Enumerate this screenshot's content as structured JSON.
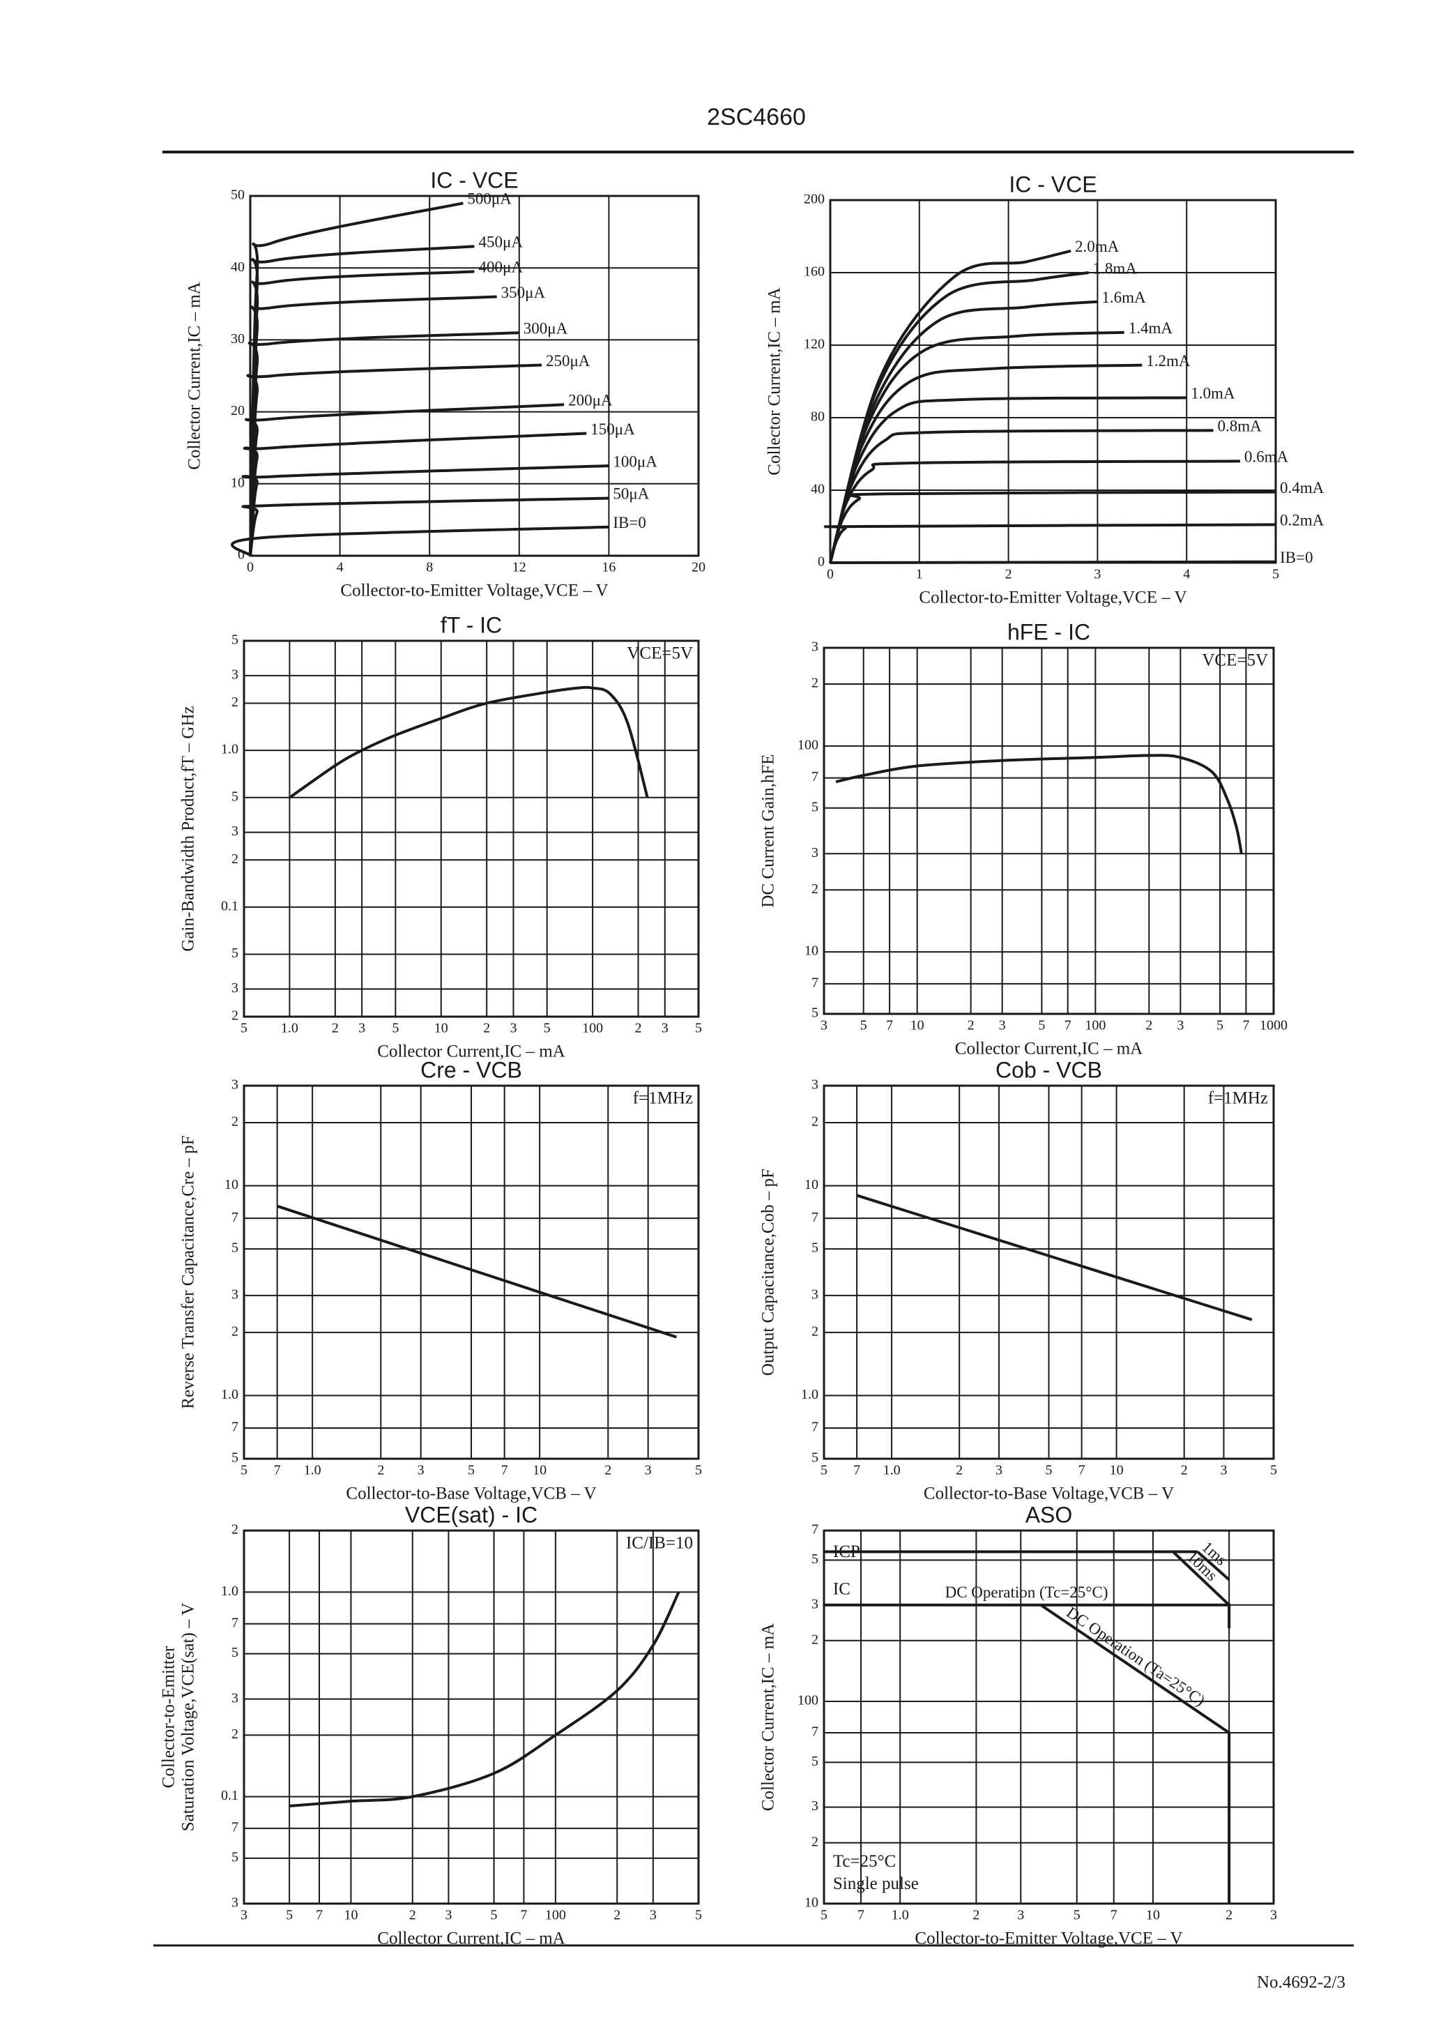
{
  "header": {
    "title": "2SC4660"
  },
  "footer": {
    "text": "No.4692-2/3"
  },
  "chart_data": [
    {
      "type": "line",
      "title": "IC - VCE",
      "xlabel": "Collector-to-Emitter Voltage,VCE – V",
      "ylabel": "Collector Current,IC – mA",
      "xlim": [
        0,
        20
      ],
      "xticks": [
        0,
        4,
        8,
        12,
        16,
        20
      ],
      "ylim": [
        0,
        50
      ],
      "yticks": [
        0,
        10,
        20,
        30,
        40,
        50
      ],
      "grid": true,
      "smooth": true,
      "color": "#1a1a1a",
      "series": [
        {
          "name": "IB=0",
          "x": [
            0,
            0.5,
            16
          ],
          "values": [
            0,
            2.5,
            4
          ]
        },
        {
          "name": "50μA",
          "x": [
            0,
            0.3,
            1,
            16
          ],
          "values": [
            0,
            6,
            7,
            8
          ]
        },
        {
          "name": "100μA",
          "x": [
            0,
            0.3,
            1,
            16
          ],
          "values": [
            0,
            10,
            11,
            12.5
          ]
        },
        {
          "name": "150μA",
          "x": [
            0,
            0.3,
            1,
            15
          ],
          "values": [
            0,
            13.5,
            15,
            17
          ]
        },
        {
          "name": "200μA",
          "x": [
            0,
            0.3,
            1,
            14
          ],
          "values": [
            0,
            17,
            19,
            21
          ]
        },
        {
          "name": "250μA",
          "x": [
            0,
            0.3,
            1,
            13
          ],
          "values": [
            0,
            22.5,
            25,
            26.5
          ]
        },
        {
          "name": "300μA",
          "x": [
            0,
            0.3,
            1,
            12
          ],
          "values": [
            0,
            26.5,
            29.5,
            31
          ]
        },
        {
          "name": "350μA",
          "x": [
            0,
            0.3,
            1,
            11
          ],
          "values": [
            0,
            31,
            34.5,
            36
          ]
        },
        {
          "name": "400μA",
          "x": [
            0,
            0.3,
            1,
            10
          ],
          "values": [
            0,
            34,
            38,
            39.5
          ]
        },
        {
          "name": "450μA",
          "x": [
            0,
            0.3,
            1,
            10
          ],
          "values": [
            0,
            37,
            41,
            43
          ]
        },
        {
          "name": "500μA",
          "x": [
            0,
            0.3,
            1,
            9.5
          ],
          "values": [
            0,
            39,
            43.5,
            49
          ]
        }
      ]
    },
    {
      "type": "line",
      "title": "IC - VCE",
      "xlabel": "Collector-to-Emitter Voltage,VCE – V",
      "ylabel": "Collector Current,IC – mA",
      "xlim": [
        0,
        5
      ],
      "xticks": [
        0,
        1,
        2,
        3,
        4,
        5
      ],
      "ylim": [
        0,
        200
      ],
      "yticks": [
        0,
        40,
        80,
        120,
        160,
        200
      ],
      "grid": true,
      "smooth": true,
      "color": "#1a1a1a",
      "series": [
        {
          "name": "IB=0",
          "x": [
            0,
            5
          ],
          "values": [
            0,
            0.5
          ]
        },
        {
          "name": "0.2mA",
          "x": [
            0,
            0.07,
            0.17,
            0.34,
            5
          ],
          "values": [
            0,
            12,
            19,
            20,
            21
          ]
        },
        {
          "name": "0.4mA",
          "x": [
            0,
            0.13,
            0.32,
            0.64,
            5
          ],
          "values": [
            0,
            23,
            35,
            38,
            39
          ]
        },
        {
          "name": "0.6mA",
          "x": [
            0,
            0.18,
            0.46,
            0.92,
            4.6
          ],
          "values": [
            0,
            33,
            51,
            55,
            56
          ]
        },
        {
          "name": "0.8mA",
          "x": [
            0,
            0.24,
            0.6,
            1.2,
            4.3
          ],
          "values": [
            0,
            43,
            67,
            72,
            73
          ]
        },
        {
          "name": "1.0mA",
          "x": [
            0,
            0.3,
            0.75,
            1.5,
            4
          ],
          "values": [
            0,
            54,
            84,
            90,
            91
          ]
        },
        {
          "name": "1.2mA",
          "x": [
            0,
            0.36,
            0.9,
            1.8,
            3.5
          ],
          "values": [
            0,
            65,
            100,
            107,
            109
          ]
        },
        {
          "name": "1.4mA",
          "x": [
            0,
            0.42,
            1.05,
            2.1,
            3.3
          ],
          "values": [
            0,
            76,
            117,
            125,
            127
          ]
        },
        {
          "name": "1.6mA",
          "x": [
            0,
            0.48,
            1.2,
            2.2,
            3
          ],
          "values": [
            0,
            86,
            133,
            141,
            144
          ]
        },
        {
          "name": "1.8mA",
          "x": [
            0,
            0.52,
            1.3,
            2.3,
            2.9
          ],
          "values": [
            0,
            95,
            147,
            156,
            160
          ]
        },
        {
          "name": "2.0mA",
          "x": [
            0,
            0.56,
            1.4,
            2.2,
            2.7
          ],
          "values": [
            0,
            102,
            158,
            166,
            172
          ]
        }
      ]
    },
    {
      "type": "line",
      "title": "fT - IC",
      "xlabel": "Collector Current,IC – mA",
      "ylabel": "Gain-Bandwidth Product,fT – GHz",
      "xlog": true,
      "ylog": true,
      "xlim": [
        0.5,
        500
      ],
      "ylim": [
        0.02,
        5
      ],
      "xticks": [
        {
          "value": 0.5,
          "label": "5"
        },
        {
          "value": 1,
          "label": "1.0"
        },
        2,
        3,
        5,
        10,
        {
          "value": 20,
          "label": "2"
        },
        {
          "value": 30,
          "label": "3"
        },
        {
          "value": 50,
          "label": "5"
        },
        100,
        {
          "value": 200,
          "label": "2"
        },
        {
          "value": 300,
          "label": "3"
        },
        {
          "value": 500,
          "label": "5"
        }
      ],
      "yticks": [
        {
          "value": 0.02,
          "label": "2"
        },
        {
          "value": 0.03,
          "label": "3"
        },
        {
          "value": 0.05,
          "label": "5"
        },
        0.1,
        {
          "value": 0.2,
          "label": "2"
        },
        {
          "value": 0.3,
          "label": "3"
        },
        {
          "value": 0.5,
          "label": "5"
        },
        {
          "value": 1,
          "label": "1.0"
        },
        2,
        3,
        5
      ],
      "grid": true,
      "smooth": true,
      "color": "#1a1a1a",
      "annotations": [
        "VCE=5V"
      ],
      "series": [
        {
          "x": [
            1,
            2,
            3,
            5,
            10,
            20,
            50,
            80,
            100,
            130,
            170,
            230
          ],
          "values": [
            0.5,
            0.8,
            1.0,
            1.25,
            1.6,
            2.0,
            2.35,
            2.5,
            2.5,
            2.3,
            1.5,
            0.5
          ]
        }
      ]
    },
    {
      "type": "line",
      "title": "hFE - IC",
      "xlabel": "Collector Current,IC – mA",
      "ylabel": "DC Current Gain,hFE",
      "xlog": true,
      "ylog": true,
      "xlim": [
        3,
        1000
      ],
      "ylim": [
        5,
        300
      ],
      "xticks": [
        3,
        5,
        7,
        10,
        {
          "value": 20,
          "label": "2"
        },
        {
          "value": 30,
          "label": "3"
        },
        {
          "value": 50,
          "label": "5"
        },
        {
          "value": 70,
          "label": "7"
        },
        100,
        {
          "value": 200,
          "label": "2"
        },
        {
          "value": 300,
          "label": "3"
        },
        {
          "value": 500,
          "label": "5"
        },
        {
          "value": 700,
          "label": "7"
        },
        1000
      ],
      "yticks": [
        5,
        7,
        10,
        {
          "value": 20,
          "label": "2"
        },
        {
          "value": 30,
          "label": "3"
        },
        {
          "value": 50,
          "label": "5"
        },
        {
          "value": 70,
          "label": "7"
        },
        100,
        {
          "value": 200,
          "label": "2"
        },
        {
          "value": 300,
          "label": "3"
        }
      ],
      "grid": true,
      "smooth": true,
      "color": "#1a1a1a",
      "annotations": [
        "VCE=5V"
      ],
      "series": [
        {
          "x": [
            3.5,
            5,
            10,
            30,
            100,
            200,
            300,
            450,
            550,
            620,
            660
          ],
          "values": [
            67,
            72,
            80,
            85,
            88,
            90,
            88,
            75,
            55,
            40,
            30
          ]
        }
      ]
    },
    {
      "type": "line",
      "title": "Cre - VCB",
      "xlabel": "Collector-to-Base Voltage,VCB – V",
      "ylabel": "Reverse Transfer Capacitance,Cre – pF",
      "xlog": true,
      "ylog": true,
      "xlim": [
        0.5,
        50
      ],
      "ylim": [
        0.5,
        30
      ],
      "xticks": [
        {
          "value": 0.5,
          "label": "5"
        },
        {
          "value": 0.7,
          "label": "7"
        },
        {
          "value": 1,
          "label": "1.0"
        },
        2,
        3,
        5,
        7,
        10,
        {
          "value": 20,
          "label": "2"
        },
        {
          "value": 30,
          "label": "3"
        },
        {
          "value": 50,
          "label": "5"
        }
      ],
      "yticks": [
        {
          "value": 0.5,
          "label": "5"
        },
        {
          "value": 0.7,
          "label": "7"
        },
        {
          "value": 1,
          "label": "1.0"
        },
        2,
        3,
        5,
        7,
        10,
        {
          "value": 20,
          "label": "2"
        },
        {
          "value": 30,
          "label": "3"
        }
      ],
      "grid": true,
      "color": "#1a1a1a",
      "annotations": [
        "f=1MHz"
      ],
      "series": [
        {
          "x": [
            0.7,
            40
          ],
          "values": [
            8,
            1.9
          ]
        }
      ]
    },
    {
      "type": "line",
      "title": "Cob - VCB",
      "xlabel": "Collector-to-Base Voltage,VCB – V",
      "ylabel": "Output Capacitance,Cob – pF",
      "xlog": true,
      "ylog": true,
      "xlim": [
        0.5,
        50
      ],
      "ylim": [
        0.5,
        30
      ],
      "xticks": [
        {
          "value": 0.5,
          "label": "5"
        },
        {
          "value": 0.7,
          "label": "7"
        },
        {
          "value": 1,
          "label": "1.0"
        },
        2,
        3,
        5,
        7,
        10,
        {
          "value": 20,
          "label": "2"
        },
        {
          "value": 30,
          "label": "3"
        },
        {
          "value": 50,
          "label": "5"
        }
      ],
      "yticks": [
        {
          "value": 0.5,
          "label": "5"
        },
        {
          "value": 0.7,
          "label": "7"
        },
        {
          "value": 1,
          "label": "1.0"
        },
        2,
        3,
        5,
        7,
        10,
        {
          "value": 20,
          "label": "2"
        },
        {
          "value": 30,
          "label": "3"
        }
      ],
      "grid": true,
      "color": "#1a1a1a",
      "annotations": [
        "f=1MHz"
      ],
      "series": [
        {
          "x": [
            0.7,
            40
          ],
          "values": [
            9,
            2.3
          ]
        }
      ]
    },
    {
      "type": "line",
      "title": "VCE(sat) - IC",
      "xlabel": "Collector Current,IC – mA",
      "ylabel": [
        "Collector-to-Emitter",
        "Saturation Voltage,VCE(sat) – V"
      ],
      "xlog": true,
      "ylog": true,
      "xlim": [
        3,
        500
      ],
      "ylim": [
        0.03,
        2
      ],
      "xticks": [
        3,
        5,
        7,
        10,
        {
          "value": 20,
          "label": "2"
        },
        {
          "value": 30,
          "label": "3"
        },
        {
          "value": 50,
          "label": "5"
        },
        {
          "value": 70,
          "label": "7"
        },
        100,
        {
          "value": 200,
          "label": "2"
        },
        {
          "value": 300,
          "label": "3"
        },
        {
          "value": 500,
          "label": "5"
        }
      ],
      "yticks": [
        {
          "value": 0.03,
          "label": "3"
        },
        {
          "value": 0.05,
          "label": "5"
        },
        {
          "value": 0.07,
          "label": "7"
        },
        0.1,
        {
          "value": 0.2,
          "label": "2"
        },
        {
          "value": 0.3,
          "label": "3"
        },
        {
          "value": 0.5,
          "label": "5"
        },
        {
          "value": 0.7,
          "label": "7"
        },
        {
          "value": 1,
          "label": "1.0"
        },
        2
      ],
      "grid": true,
      "smooth": true,
      "color": "#1a1a1a",
      "annotations": [
        "IC/IB=10"
      ],
      "series": [
        {
          "x": [
            5,
            10,
            20,
            50,
            100,
            200,
            300,
            400
          ],
          "values": [
            0.09,
            0.095,
            0.1,
            0.13,
            0.2,
            0.33,
            0.55,
            1.0
          ]
        }
      ]
    },
    {
      "type": "line",
      "title": "ASO",
      "xlabel": "Collector-to-Emitter Voltage,VCE – V",
      "ylabel": "Collector Current,IC – mA",
      "xlog": true,
      "ylog": true,
      "xlim": [
        0.5,
        30
      ],
      "ylim": [
        10,
        700
      ],
      "xticks": [
        {
          "value": 0.5,
          "label": "5"
        },
        {
          "value": 0.7,
          "label": "7"
        },
        {
          "value": 1,
          "label": "1.0"
        },
        2,
        3,
        5,
        7,
        10,
        {
          "value": 20,
          "label": "2"
        },
        {
          "value": 30,
          "label": "3"
        }
      ],
      "yticks": [
        10,
        {
          "value": 20,
          "label": "2"
        },
        {
          "value": 30,
          "label": "3"
        },
        {
          "value": 50,
          "label": "5"
        },
        {
          "value": 70,
          "label": "7"
        },
        100,
        {
          "value": 200,
          "label": "2"
        },
        {
          "value": 300,
          "label": "3"
        },
        {
          "value": 500,
          "label": "5"
        },
        {
          "value": 700,
          "label": "7"
        }
      ],
      "grid": true,
      "color": "#1a1a1a",
      "annotations": [
        "ICP",
        "IC",
        "Tc=25°C",
        "Single pulse"
      ],
      "series": [
        {
          "x": [
            0.5,
            15
          ],
          "values": [
            550,
            550
          ]
        },
        {
          "name": "1ms",
          "x": [
            15,
            20
          ],
          "values": [
            550,
            400
          ]
        },
        {
          "name": "10ms",
          "x": [
            12,
            20
          ],
          "values": [
            550,
            300
          ]
        },
        {
          "name": "DC Operation (Tc=25°C)",
          "x": [
            0.5,
            20,
            20
          ],
          "values": [
            300,
            300,
            230
          ]
        },
        {
          "name": "DC Operation (Ta=25°C)",
          "x": [
            3.6,
            20,
            20
          ],
          "values": [
            300,
            70,
            10
          ]
        }
      ]
    }
  ]
}
